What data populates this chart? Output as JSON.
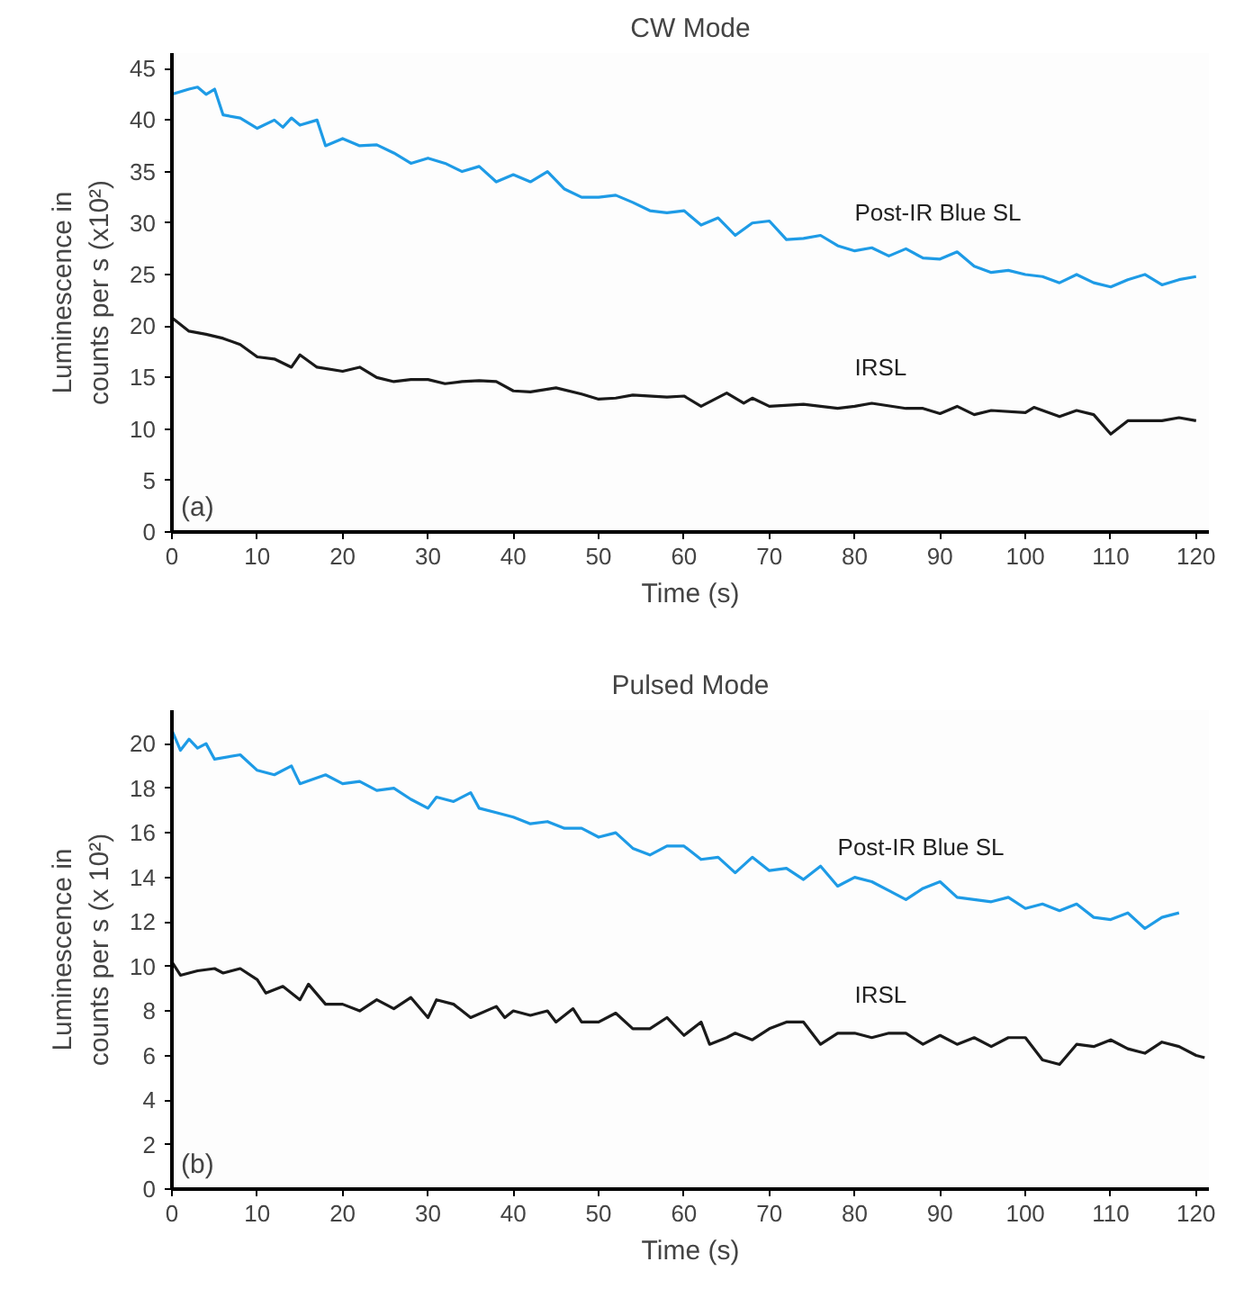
{
  "chart_data": [
    {
      "type": "line",
      "title": "CW Mode",
      "xlabel": "Time (s)",
      "ylabel": "Luminescence in\ncounts per s (x10²)",
      "annotations": [
        "(a)"
      ],
      "xlim": [
        0,
        121.5
      ],
      "ylim": [
        0,
        46.5
      ],
      "xticks": [
        0,
        10,
        20,
        30,
        40,
        50,
        60,
        70,
        80,
        90,
        100,
        110,
        120
      ],
      "yticks": [
        0,
        5,
        10,
        15,
        20,
        25,
        30,
        35,
        40,
        45
      ],
      "grid": false,
      "series": [
        {
          "name": "Post-IR Blue SL",
          "color": "#1e9be6",
          "x": [
            0,
            2,
            3,
            4,
            5,
            6,
            8,
            10,
            12,
            13,
            14,
            15,
            17,
            18,
            20,
            22,
            24,
            26,
            28,
            30,
            32,
            34,
            36,
            38,
            40,
            42,
            44,
            46,
            48,
            50,
            52,
            54,
            56,
            58,
            60,
            62,
            64,
            66,
            68,
            70,
            72,
            74,
            76,
            78,
            80,
            82,
            84,
            86,
            88,
            90,
            92,
            94,
            96,
            98,
            100,
            102,
            104,
            106,
            108,
            110,
            112,
            114,
            116,
            118,
            120
          ],
          "values": [
            42.5,
            43,
            43.2,
            42.5,
            43,
            40.5,
            40.2,
            39.2,
            40,
            39.3,
            40.2,
            39.5,
            40,
            37.5,
            38.2,
            37.5,
            37.6,
            36.8,
            35.8,
            36.3,
            35.8,
            35,
            35.5,
            34,
            34.7,
            34,
            35,
            33.3,
            32.5,
            32.5,
            32.7,
            32,
            31.2,
            31,
            31.2,
            29.8,
            30.5,
            28.8,
            30,
            30.2,
            28.4,
            28.5,
            28.8,
            27.8,
            27.3,
            27.6,
            26.8,
            27.5,
            26.6,
            26.5,
            27.2,
            25.8,
            25.2,
            25.4,
            25,
            24.8,
            24.2,
            25,
            24.2,
            23.8,
            24.5,
            25,
            24,
            24.5,
            24.8
          ]
        },
        {
          "name": "IRSL",
          "color": "#1a1a1a",
          "x": [
            0,
            2,
            4,
            6,
            8,
            10,
            12,
            14,
            15,
            17,
            20,
            22,
            24,
            26,
            28,
            30,
            32,
            34,
            36,
            38,
            40,
            42,
            45,
            48,
            50,
            52,
            54,
            58,
            60,
            62,
            65,
            67,
            68,
            70,
            74,
            78,
            80,
            82,
            86,
            88,
            90,
            92,
            94,
            96,
            100,
            101,
            104,
            106,
            108,
            110,
            112,
            116,
            118,
            120
          ],
          "values": [
            20.8,
            19.5,
            19.2,
            18.8,
            18.2,
            17,
            16.8,
            16,
            17.2,
            16,
            15.6,
            16,
            15,
            14.6,
            14.8,
            14.8,
            14.4,
            14.6,
            14.7,
            14.6,
            13.7,
            13.6,
            14,
            13.4,
            12.9,
            13,
            13.3,
            13.1,
            13.2,
            12.2,
            13.5,
            12.5,
            13,
            12.2,
            12.4,
            12,
            12.2,
            12.5,
            12,
            12,
            11.5,
            12.2,
            11.4,
            11.8,
            11.6,
            12.1,
            11.2,
            11.8,
            11.4,
            9.5,
            10.8,
            10.8,
            11.1,
            10.8
          ]
        }
      ]
    },
    {
      "type": "line",
      "title": "Pulsed Mode",
      "xlabel": "Time (s)",
      "ylabel": "Luminescence in\ncounts per s (x 10²)",
      "annotations": [
        "(b)"
      ],
      "xlim": [
        0,
        121.5
      ],
      "ylim": [
        0,
        21.5
      ],
      "xticks": [
        0,
        10,
        20,
        30,
        40,
        50,
        60,
        70,
        80,
        90,
        100,
        110,
        120
      ],
      "yticks": [
        0,
        2,
        4,
        6,
        8,
        10,
        12,
        14,
        16,
        18,
        20
      ],
      "grid": false,
      "series": [
        {
          "name": "Post-IR Blue SL",
          "color": "#1e9be6",
          "x": [
            0,
            1,
            2,
            3,
            4,
            5,
            8,
            10,
            12,
            14,
            15,
            18,
            20,
            22,
            24,
            26,
            28,
            30,
            31,
            33,
            35,
            36,
            38,
            40,
            42,
            44,
            46,
            48,
            50,
            52,
            54,
            56,
            58,
            60,
            62,
            64,
            66,
            68,
            70,
            72,
            74,
            76,
            78,
            80,
            82,
            84,
            86,
            88,
            90,
            92,
            94,
            96,
            98,
            100,
            102,
            104,
            106,
            108,
            110,
            112,
            114,
            116,
            118
          ],
          "values": [
            20.6,
            19.7,
            20.2,
            19.8,
            20,
            19.3,
            19.5,
            18.8,
            18.6,
            19,
            18.2,
            18.6,
            18.2,
            18.3,
            17.9,
            18,
            17.5,
            17.1,
            17.6,
            17.4,
            17.8,
            17.1,
            16.9,
            16.7,
            16.4,
            16.5,
            16.2,
            16.2,
            15.8,
            16,
            15.3,
            15,
            15.4,
            15.4,
            14.8,
            14.9,
            14.2,
            14.9,
            14.3,
            14.4,
            13.9,
            14.5,
            13.6,
            14,
            13.8,
            13.4,
            13,
            13.5,
            13.8,
            13.1,
            13,
            12.9,
            13.1,
            12.6,
            12.8,
            12.5,
            12.8,
            12.2,
            12.1,
            12.4,
            11.7,
            12.2,
            12.4
          ]
        },
        {
          "name": "IRSL",
          "color": "#1a1a1a",
          "x": [
            0,
            1,
            3,
            5,
            6,
            8,
            10,
            11,
            13,
            15,
            16,
            18,
            20,
            22,
            24,
            26,
            28,
            30,
            31,
            33,
            35,
            38,
            39,
            40,
            42,
            44,
            45,
            47,
            48,
            50,
            52,
            54,
            56,
            58,
            60,
            62,
            63,
            65,
            66,
            68,
            70,
            72,
            74,
            76,
            78,
            80,
            82,
            84,
            86,
            88,
            90,
            92,
            94,
            96,
            98,
            100,
            102,
            104,
            106,
            108,
            110,
            112,
            114,
            116,
            118,
            120,
            121
          ],
          "values": [
            10.2,
            9.6,
            9.8,
            9.9,
            9.7,
            9.9,
            9.4,
            8.8,
            9.1,
            8.5,
            9.2,
            8.3,
            8.3,
            8,
            8.5,
            8.1,
            8.6,
            7.7,
            8.5,
            8.3,
            7.7,
            8.2,
            7.7,
            8,
            7.8,
            8,
            7.5,
            8.1,
            7.5,
            7.5,
            7.9,
            7.2,
            7.2,
            7.7,
            6.9,
            7.5,
            6.5,
            6.8,
            7,
            6.7,
            7.2,
            7.5,
            7.5,
            6.5,
            7,
            7,
            6.8,
            7,
            7,
            6.5,
            6.9,
            6.5,
            6.8,
            6.4,
            6.8,
            6.8,
            5.8,
            5.6,
            6.5,
            6.4,
            6.7,
            6.3,
            6.1,
            6.6,
            6.4,
            6,
            5.9
          ]
        }
      ]
    }
  ]
}
